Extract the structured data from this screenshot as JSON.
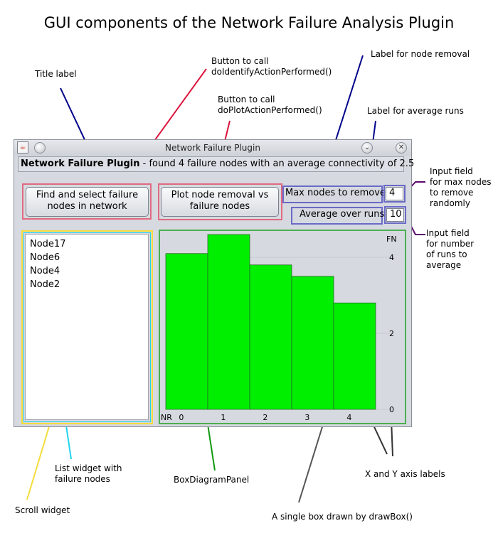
{
  "page_title": "GUI components of the Network Failure Analysis Plugin",
  "annotations": {
    "title_label": "Title label",
    "identify_button": "Button to call\ndoIdentifyActionPerformed()",
    "plot_button": "Button to call\ndoPlotActionPerformed()",
    "node_removal_label": "Label for node removal",
    "average_runs_label": "Label for average runs",
    "max_nodes_field": "Input field\nfor max nodes\nto remove\nrandomly",
    "runs_field": "Input field\nfor number\nof runs to\naverage",
    "list_widget": "List widget with\nfailure nodes",
    "scroll_widget": "Scroll widget",
    "box_panel": "BoxDiagramPanel",
    "axis_labels": "X and Y axis labels",
    "single_box": "A single box drawn by drawBox()"
  },
  "window": {
    "title": "Network Failure Plugin",
    "status_bold": "Network Failure Plugin",
    "status_rest": " - found 4 failure nodes with an average connectivity of 2.5",
    "identify_button": "Find and select failure\nnodes in network",
    "plot_button": "Plot node removal vs\nfailure nodes",
    "max_nodes_label": "Max nodes to remove",
    "max_nodes_value": "4",
    "average_runs_label": "Average over runs",
    "average_runs_value": "10",
    "failure_nodes": [
      "Node17",
      "Node6",
      "Node4",
      "Node2"
    ]
  },
  "colors": {
    "bar": "#00ee00",
    "title_leader": "#00008b",
    "button_leader": "#dc143c",
    "label_leader": "#00008b",
    "field_leader": "#5a0a6e",
    "list_leader": "#22d3f0",
    "scroll_leader": "#f4dc3c",
    "panel_leader": "#119911",
    "box_leader": "#555555",
    "axis_leader": "#333333"
  },
  "chart_data": {
    "type": "bar",
    "categories": [
      "0",
      "1",
      "2",
      "3",
      "4"
    ],
    "values": [
      4.1,
      4.6,
      3.8,
      3.5,
      2.8
    ],
    "xlabel": "NR",
    "ylabel": "FN",
    "ylim": [
      0,
      4.6
    ],
    "yticks": [
      "0",
      "2",
      "4"
    ],
    "grid": true
  }
}
